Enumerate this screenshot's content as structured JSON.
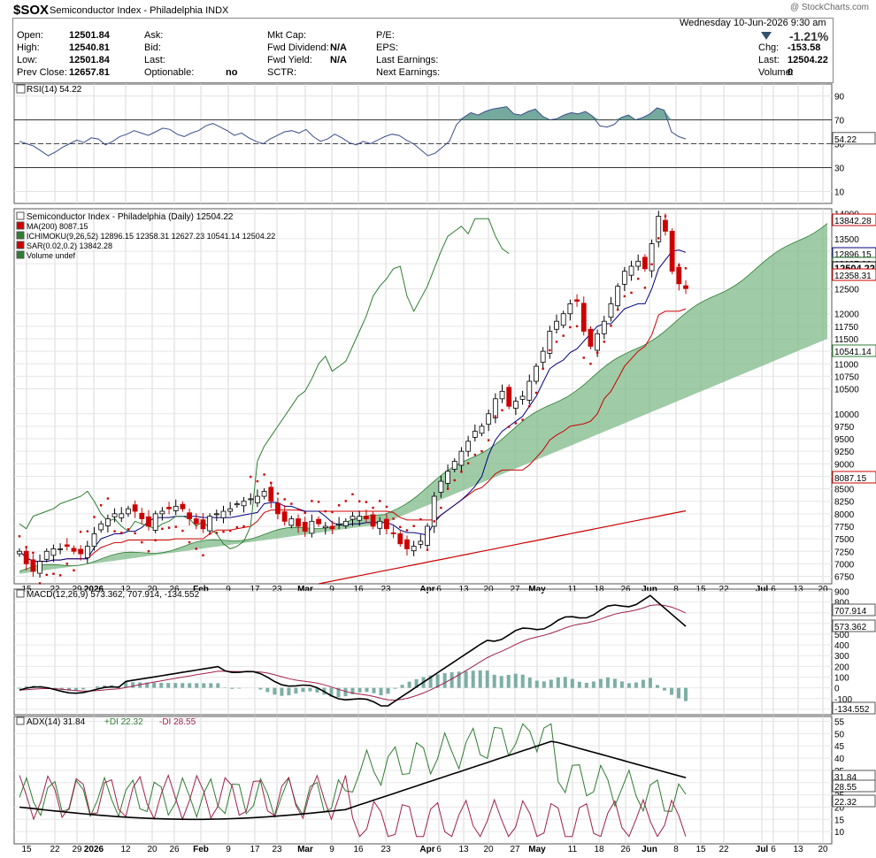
{
  "header": {
    "symbol": "$SOX",
    "name": "Semiconductor Index - Philadelphia",
    "exchange": "INDX",
    "brand": "@ StockCharts.com",
    "datetime": "Wednesday  10-Jun-2026  9:30 am",
    "change_pct": "-1.21%",
    "quote": [
      {
        "label": "Open:",
        "value": "12501.84"
      },
      {
        "label": "High:",
        "value": "12540.81"
      },
      {
        "label": "Low:",
        "value": "12501.84"
      },
      {
        "label": "Prev Close:",
        "value": "12657.81"
      },
      {
        "label": "Ask:",
        "value": ""
      },
      {
        "label": "Bid:",
        "value": ""
      },
      {
        "label": "Last:",
        "value": ""
      },
      {
        "label": "Optionable:",
        "value": "no"
      },
      {
        "label": "Mkt Cap:",
        "value": ""
      },
      {
        "label": "Fwd Dividend:",
        "value": "N/A"
      },
      {
        "label": "Fwd Yield:",
        "value": "N/A"
      },
      {
        "label": "SCTR:",
        "value": ""
      },
      {
        "label": "P/E:",
        "value": ""
      },
      {
        "label": "EPS:",
        "value": ""
      },
      {
        "label": "Last Earnings:",
        "value": ""
      },
      {
        "label": "Next Earnings:",
        "value": ""
      },
      {
        "label": "Chg:",
        "value": "-153.58"
      },
      {
        "label": "Last:",
        "value": "12504.22"
      },
      {
        "label": "Volume:",
        "value": "0"
      }
    ]
  },
  "colors": {
    "up": "#000000",
    "down": "#cc0000",
    "ma": "#cc0000",
    "tenkan": "#000080",
    "kijun": "#cc0000",
    "chikou": "#2e7d32",
    "cloud_bull": "#7fb98a",
    "cloud_bear": "#e88a8a",
    "rsi": "#3b4e8c",
    "macd_hist": "#6fa69a",
    "signal": "#a0204a",
    "adx": "#000000",
    "plus_di": "#2e7d32",
    "minus_di": "#a0204a",
    "sar": "#cc0000"
  },
  "date_axis": {
    "labels": [
      "15",
      "22",
      "29",
      "2026",
      "12",
      "20",
      "26",
      "Feb",
      "9",
      "17",
      "23",
      "Mar",
      "9",
      "16",
      "23",
      "Apr",
      "6",
      "13",
      "20",
      "27",
      "May",
      "11",
      "18",
      "26",
      "Jun",
      "8",
      "15",
      "22",
      "Jul",
      "6",
      "13",
      "20"
    ],
    "bold": [
      "2026",
      "Feb",
      "Mar",
      "Apr",
      "May",
      "Jun",
      "Jul"
    ]
  },
  "rsi": {
    "legend": "RSI(14) 54.22",
    "ticks": [
      "90",
      "70",
      "50",
      "30",
      "10"
    ],
    "ylim": [
      0,
      100
    ],
    "last": "54.22",
    "values": [
      52,
      50,
      48,
      44,
      40,
      43,
      47,
      50,
      53,
      51,
      55,
      54,
      49,
      52,
      56,
      58,
      61,
      59,
      57,
      60,
      63,
      62,
      58,
      56,
      59,
      61,
      65,
      67,
      64,
      61,
      57,
      59,
      55,
      52,
      50,
      54,
      57,
      60,
      61,
      59,
      62,
      56,
      52,
      54,
      58,
      55,
      51,
      49,
      52,
      50,
      53,
      56,
      58,
      57,
      53,
      50,
      45,
      40,
      42,
      47,
      52,
      66,
      72,
      76,
      74,
      77,
      79,
      80,
      81,
      75,
      74,
      77,
      79,
      73,
      70,
      71,
      74,
      76,
      75,
      77,
      73,
      65,
      64,
      66,
      72,
      74,
      70,
      72,
      75,
      80,
      78,
      60,
      56,
      54
    ]
  },
  "price": {
    "legend": "Semiconductor Index - Philadelphia (Daily) 12504.22",
    "ma_legend": "MA(200) 8087.15",
    "ichi_label": "ICHIMOKU(9,26,52)",
    "ichi_vals": [
      "12896.15",
      "12358.31",
      "12627.23",
      "10541.14",
      "12504.22"
    ],
    "sar_legend": "SAR(0.02,0.2) 13842.28",
    "vol_legend": "Volume undef",
    "ticks": [
      "14000",
      "13500",
      "13250",
      "13000",
      "12500",
      "12000",
      "11750",
      "11500",
      "11250",
      "11000",
      "10750",
      "10500",
      "10000",
      "9750",
      "9500",
      "9250",
      "9000",
      "8750",
      "8500",
      "8250",
      "8000",
      "7750",
      "7500",
      "7250",
      "7000",
      "6750"
    ],
    "ylim": [
      6600,
      14100
    ],
    "last_flags": [
      "13842.28",
      "12896.15",
      "12627.23",
      "12504.22",
      "12358.31",
      "10541.14",
      "8087.15"
    ],
    "closes": [
      7250,
      7000,
      6850,
      7050,
      7250,
      7300,
      7300,
      7350,
      7250,
      7200,
      7350,
      7600,
      7800,
      7900,
      8000,
      8000,
      8100,
      8050,
      7900,
      7750,
      8000,
      8050,
      8100,
      8150,
      8100,
      7900,
      7800,
      7700,
      7950,
      8000,
      8050,
      8100,
      8200,
      8250,
      8300,
      8350,
      8450,
      8250,
      8000,
      7850,
      7900,
      7750,
      7650,
      7850,
      7800,
      7750,
      7700,
      7800,
      7850,
      7950,
      7950,
      7900,
      7750,
      7850,
      7700,
      7600,
      7400,
      7300,
      7350,
      7450,
      7750,
      8350,
      8650,
      8850,
      9050,
      9250,
      9450,
      9650,
      9750,
      10000,
      10300,
      10450,
      10150,
      10250,
      10350,
      10650,
      10950,
      11250,
      11650,
      11850,
      12000,
      12200,
      12250,
      11650,
      11350,
      11600,
      11850,
      12200,
      12550,
      12850,
      12950,
      13050,
      12900,
      13400,
      13950,
      13650,
      12850,
      12600,
      12504.22
    ]
  },
  "macd": {
    "legend": "MACD(12,26,9) 573.362, 707.914, -134.552",
    "ticks": [
      "900",
      "800",
      "700",
      "600",
      "500",
      "400",
      "300",
      "200",
      "100",
      "0",
      "-100",
      "-200"
    ],
    "ylim": [
      -250,
      920
    ],
    "flags": [
      "707.914",
      "573.362",
      "-134.552"
    ]
  },
  "adx": {
    "legend_adx": "ADX(14) 31.84",
    "legend_pdi": "+DI 22.32",
    "legend_mdi": "-DI 28.55",
    "ticks": [
      "55",
      "50",
      "45",
      "40",
      "35",
      "30",
      "25",
      "20",
      "15",
      "10"
    ],
    "ylim": [
      5,
      57
    ],
    "flags": [
      "31.84",
      "28.55",
      "22.32"
    ]
  }
}
